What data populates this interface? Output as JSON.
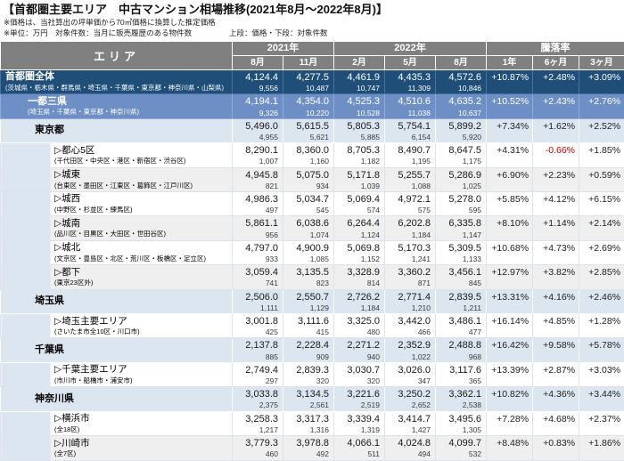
{
  "title": "【首都圏主要エリア　中古マンション相場推移(2021年8月～2022年8月)】",
  "notes": {
    "note1": "※価格は、当社算出の坪単価から70㎡価格に換算した推定価格",
    "note2": "※単位：万円　対象件数：当月に販売履歴のある物件数",
    "legend": "上段：価格・下段：対象件数"
  },
  "colors": {
    "header_bg": "#808080",
    "region_dark_bg": "#1F4E79",
    "region_medium_bg": "#6E8FC6",
    "prefecture_bg": "#DCE6F1",
    "stripe_gray_bg": "#EFEFEF",
    "negative_rate": "#C00000"
  },
  "table": {
    "area_header": "エリア",
    "groups": [
      {
        "label": "2021年",
        "span": 2
      },
      {
        "label": "2022年",
        "span": 3
      },
      {
        "label": "騰落率",
        "span": 3
      }
    ],
    "months": [
      "8月",
      "11月",
      "2月",
      "5月",
      "8月"
    ],
    "rate_headers": [
      "1年",
      "6ヶ月",
      "3ヶ月"
    ]
  },
  "chart_data": {
    "type": "table",
    "title": "首都圏主要エリア 中古マンション相場推移(2021年8月～2022年8月)",
    "unit": "万円",
    "columns": [
      "エリア",
      "2021年8月",
      "2021年11月",
      "2022年2月",
      "2022年5月",
      "2022年8月",
      "騰落率1年",
      "騰落率6ヶ月",
      "騰落率3ヶ月"
    ],
    "rows": [
      {
        "level": "region-dark",
        "name": "首都圏全体",
        "sub": "(茨城県・栃木県・群馬県・埼玉県・千葉県・東京都・神奈川県・山梨県)",
        "prices": [
          "4,124.4",
          "4,277.5",
          "4,461.9",
          "4,435.3",
          "4,572.6"
        ],
        "counts": [
          "9,556",
          "10,487",
          "10,747",
          "11,309",
          "10,846"
        ],
        "rates": [
          "+10.87%",
          "+2.48%",
          "+3.09%"
        ]
      },
      {
        "level": "region-medium",
        "name": "一都三県",
        "sub": "(埼玉県・千葉県・東京都・神奈川県)",
        "prices": [
          "4,194.1",
          "4,354.0",
          "4,525.3",
          "4,510.6",
          "4,635.2"
        ],
        "counts": [
          "9,326",
          "10,220",
          "10,528",
          "11,038",
          "10,637"
        ],
        "rates": [
          "+10.52%",
          "+2.43%",
          "+2.76%"
        ]
      },
      {
        "level": "pref",
        "name": "東京都",
        "sub": "",
        "prices": [
          "5,496.0",
          "5,615.5",
          "5,805.3",
          "5,754.1",
          "5,899.2"
        ],
        "counts": [
          "4,955",
          "5,621",
          "5,885",
          "6,154",
          "5,920"
        ],
        "rates": [
          "+7.34%",
          "+1.62%",
          "+2.52%"
        ]
      },
      {
        "level": "sub",
        "shade": "white",
        "name": "▷都心5区",
        "sub": "(千代田区・中央区・港区・新宿区・渋谷区)",
        "prices": [
          "8,290.1",
          "8,360.0",
          "8,705.3",
          "8,490.7",
          "8,647.5"
        ],
        "counts": [
          "1,007",
          "1,160",
          "1,182",
          "1,195",
          "1,175"
        ],
        "rates": [
          "+4.31%",
          "-0.66%",
          "+1.85%"
        ]
      },
      {
        "level": "sub",
        "shade": "gray",
        "name": "▷城東",
        "sub": "(台東区・墨田区・江東区・葛飾区・江戸川区)",
        "prices": [
          "4,945.8",
          "5,075.0",
          "5,171.8",
          "5,255.7",
          "5,286.9"
        ],
        "counts": [
          "821",
          "934",
          "1,039",
          "1,088",
          "1,025"
        ],
        "rates": [
          "+6.90%",
          "+2.23%",
          "+0.59%"
        ]
      },
      {
        "level": "sub",
        "shade": "white",
        "name": "▷城西",
        "sub": "(中野区・杉並区・練馬区)",
        "prices": [
          "4,986.3",
          "5,034.7",
          "5,069.4",
          "4,972.1",
          "5,278.0"
        ],
        "counts": [
          "497",
          "545",
          "574",
          "575",
          "595"
        ],
        "rates": [
          "+5.85%",
          "+4.12%",
          "+6.15%"
        ]
      },
      {
        "level": "sub",
        "shade": "gray",
        "name": "▷城南",
        "sub": "(品川区・目黒区・大田区・世田谷区)",
        "prices": [
          "5,861.1",
          "6,038.6",
          "6,264.4",
          "6,202.8",
          "6,335.8"
        ],
        "counts": [
          "956",
          "1,074",
          "1,124",
          "1,184",
          "1,147"
        ],
        "rates": [
          "+8.10%",
          "+1.14%",
          "+2.14%"
        ]
      },
      {
        "level": "sub",
        "shade": "white",
        "name": "▷城北",
        "sub": "(文京区・豊島区・北区・荒川区・板橋区・足立区)",
        "prices": [
          "4,797.0",
          "4,900.9",
          "5,069.8",
          "5,170.3",
          "5,309.5"
        ],
        "counts": [
          "933",
          "1,085",
          "1,152",
          "1,241",
          "1,133"
        ],
        "rates": [
          "+10.68%",
          "+4.73%",
          "+2.69%"
        ]
      },
      {
        "level": "sub",
        "shade": "gray",
        "name": "▷都下",
        "sub": "(東京23区外)",
        "prices": [
          "3,059.4",
          "3,135.5",
          "3,328.9",
          "3,360.2",
          "3,456.1"
        ],
        "counts": [
          "741",
          "823",
          "814",
          "871",
          "845"
        ],
        "rates": [
          "+12.97%",
          "+3.82%",
          "+2.85%"
        ]
      },
      {
        "level": "pref",
        "name": "埼玉県",
        "sub": "",
        "prices": [
          "2,506.0",
          "2,550.7",
          "2,726.2",
          "2,771.4",
          "2,839.5"
        ],
        "counts": [
          "1,111",
          "1,129",
          "1,184",
          "1,210",
          "1,211"
        ],
        "rates": [
          "+13.31%",
          "+4.16%",
          "+2.46%"
        ]
      },
      {
        "level": "sub",
        "shade": "white",
        "name": "▷埼玉主要エリア",
        "sub": "(さいたま市全10区・川口市)",
        "prices": [
          "3,001.8",
          "3,111.6",
          "3,325.0",
          "3,442.0",
          "3,486.1"
        ],
        "counts": [
          "425",
          "415",
          "480",
          "466",
          "477"
        ],
        "rates": [
          "+16.14%",
          "+4.85%",
          "+1.28%"
        ]
      },
      {
        "level": "pref",
        "name": "千葉県",
        "sub": "",
        "prices": [
          "2,137.8",
          "2,228.4",
          "2,271.2",
          "2,352.9",
          "2,488.8"
        ],
        "counts": [
          "885",
          "909",
          "940",
          "1,022",
          "968"
        ],
        "rates": [
          "+16.42%",
          "+9.58%",
          "+5.78%"
        ]
      },
      {
        "level": "sub",
        "shade": "white",
        "name": "▷千葉主要エリア",
        "sub": "(市川市・船橋市・浦安市)",
        "prices": [
          "2,749.4",
          "2,839.3",
          "3,030.7",
          "3,026.0",
          "3,117.6"
        ],
        "counts": [
          "297",
          "320",
          "320",
          "347",
          "365"
        ],
        "rates": [
          "+13.39%",
          "+2.87%",
          "+3.03%"
        ]
      },
      {
        "level": "pref",
        "name": "神奈川県",
        "sub": "",
        "prices": [
          "3,033.8",
          "3,134.5",
          "3,221.6",
          "3,250.2",
          "3,362.1"
        ],
        "counts": [
          "2,375",
          "2,561",
          "2,519",
          "2,652",
          "2,538"
        ],
        "rates": [
          "+10.82%",
          "+4.36%",
          "+3.44%"
        ]
      },
      {
        "level": "sub",
        "shade": "white",
        "name": "▷横浜市",
        "sub": "(全18区)",
        "prices": [
          "3,258.3",
          "3,317.3",
          "3,339.4",
          "3,414.7",
          "3,495.6"
        ],
        "counts": [
          "1,217",
          "1,316",
          "1,319",
          "1,427",
          "1,305"
        ],
        "rates": [
          "+7.28%",
          "+4.68%",
          "+2.37%"
        ]
      },
      {
        "level": "sub",
        "shade": "gray",
        "name": "▷川崎市",
        "sub": "(全7区)",
        "prices": [
          "3,779.3",
          "3,978.8",
          "4,066.1",
          "4,024.8",
          "4,099.7"
        ],
        "counts": [
          "460",
          "492",
          "511",
          "494",
          "532"
        ],
        "rates": [
          "+8.48%",
          "+0.83%",
          "+1.86%"
        ]
      }
    ]
  }
}
